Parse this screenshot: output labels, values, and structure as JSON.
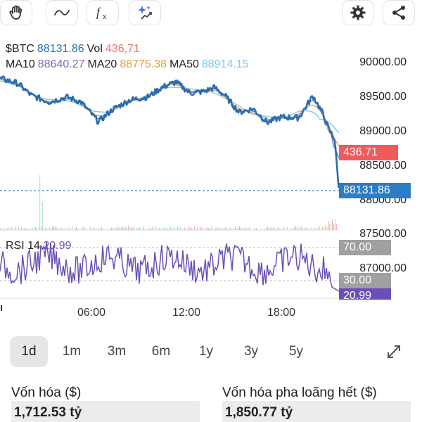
{
  "toolbar": {
    "left_icons": [
      "hand-icon",
      "wave-icon",
      "function-icon",
      "ai-sparkle-icon"
    ],
    "right_icons": [
      "gear-icon",
      "share-icon"
    ]
  },
  "legend": {
    "symbol": "$BTC",
    "price": "88131.86",
    "vol_label": "Vol",
    "vol_value": "436,71",
    "ma10_label": "MA10",
    "ma10_value": "88640.27",
    "ma20_label": "MA20",
    "ma20_value": "88775.38",
    "ma50_label": "MA50",
    "ma50_value": "88914.15"
  },
  "price_axis": [
    "90000.00",
    "89500.00",
    "89000.00",
    "88500.00",
    "88000.00",
    "87500.00",
    "87000.00"
  ],
  "badges": {
    "volume": "436.71",
    "price": "88131.86",
    "rsi_high": "70.00",
    "rsi_low": "30.00",
    "rsi_current": "20.99"
  },
  "rsi": {
    "label": "RSI 14",
    "value": "20.99"
  },
  "time_axis": [
    "06:00",
    "12:00",
    "18:00"
  ],
  "periods": [
    "1d",
    "1m",
    "3m",
    "6m",
    "1y",
    "3y",
    "5y"
  ],
  "active_period": "1d",
  "stats": {
    "market_cap_label": "Vốn hóa ($)",
    "market_cap_value": "1,712.53 tỷ",
    "fdv_label": "Vốn hóa pha loãng hết ($)",
    "fdv_value": "1,850.77 tỷ"
  },
  "colors": {
    "price_line": "#2b6cb0",
    "ma10": "#7c6bb8",
    "ma20": "#e0a040",
    "ma50": "#7ec8e8",
    "rsi_line": "#6a4fb8",
    "volume_badge": "#f05a5a",
    "price_badge": "#2b7dc4",
    "rsi_badge_gray": "#a0a0a0",
    "rsi_badge_current": "#6a4fb8"
  }
}
